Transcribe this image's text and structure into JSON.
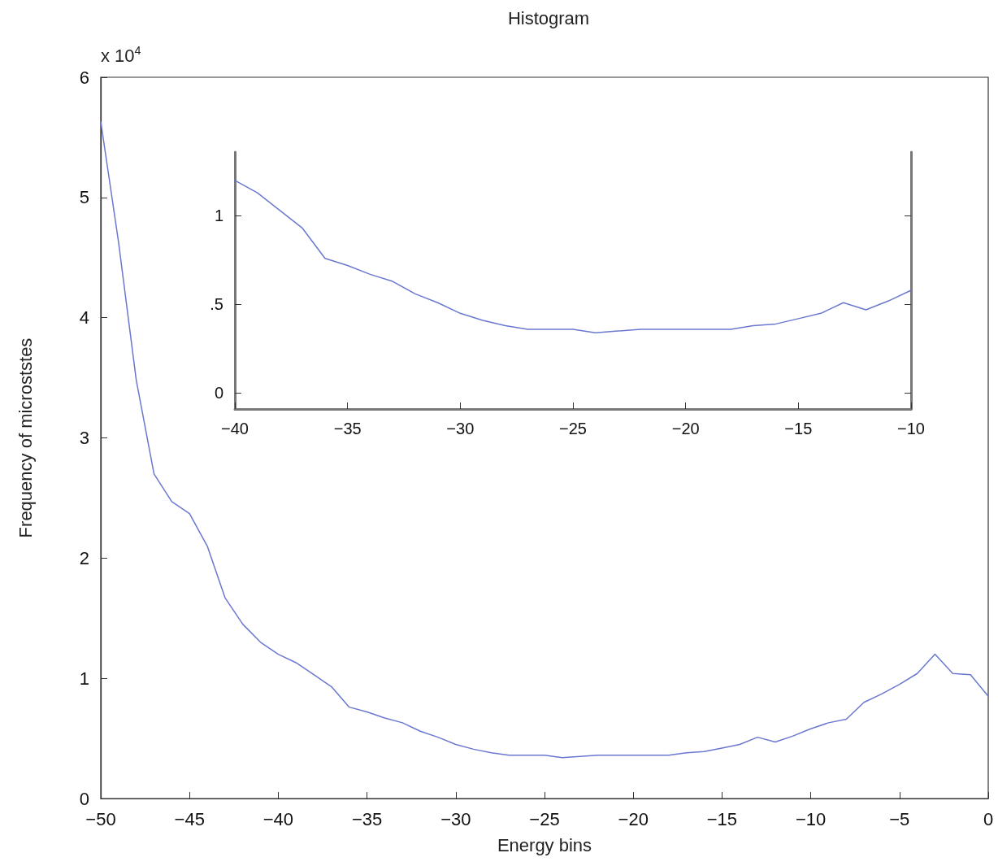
{
  "chart_data": [
    {
      "type": "line",
      "title": "Histogram",
      "xlabel": "Energy bins",
      "ylabel": "Frequency of microststes",
      "annotations": [
        "x 10$^{4}$"
      ],
      "color": "#6a78d0",
      "marker": "none",
      "x": [
        -50,
        -49,
        -48,
        -47,
        -46,
        -45,
        -44,
        -43,
        -42,
        -41,
        -40,
        -39,
        -38,
        -37,
        -36,
        -35,
        -34,
        -33,
        -32,
        -31,
        -30,
        -29,
        -28,
        -27,
        -26,
        -25,
        -24,
        -23,
        -22,
        -21,
        -20,
        -19,
        -18,
        -17,
        -16,
        -15,
        -14,
        -13,
        -12,
        -11,
        -10,
        -9,
        -8,
        -7,
        -6,
        -5,
        -4,
        -3,
        -2,
        -1,
        0
      ],
      "values": [
        5.63,
        4.63,
        3.48,
        2.7,
        2.47,
        2.37,
        2.1,
        1.67,
        1.45,
        1.3,
        1.2,
        1.13,
        1.03,
        0.93,
        0.76,
        0.72,
        0.67,
        0.63,
        0.56,
        0.51,
        0.45,
        0.41,
        0.38,
        0.36,
        0.36,
        0.36,
        0.34,
        0.35,
        0.36,
        0.36,
        0.36,
        0.36,
        0.36,
        0.38,
        0.39,
        0.42,
        0.45,
        0.51,
        0.47,
        0.52,
        0.58,
        0.63,
        0.66,
        0.8,
        0.87,
        0.95,
        1.04,
        1.2,
        1.04,
        1.03,
        0.85
      ],
      "xlim": [
        -50,
        0
      ],
      "xticks": [
        -50,
        -45,
        -40,
        -35,
        -30,
        -25,
        -20,
        -15,
        -10,
        -5,
        0
      ],
      "ylim": [
        0,
        6
      ],
      "yticks": [
        0,
        1,
        2,
        3,
        4,
        5,
        6
      ]
    },
    {
      "type": "line",
      "color": "#6a78d0",
      "marker": "none",
      "x": [
        -40,
        -39,
        -38,
        -37,
        -36,
        -35,
        -34,
        -33,
        -32,
        -31,
        -30,
        -29,
        -28,
        -27,
        -26,
        -25,
        -24,
        -23,
        -22,
        -21,
        -20,
        -19,
        -18,
        -17,
        -16,
        -15,
        -14,
        -13,
        -12,
        -11,
        -10
      ],
      "values": [
        1.2,
        1.13,
        1.03,
        0.93,
        0.76,
        0.72,
        0.67,
        0.63,
        0.56,
        0.51,
        0.45,
        0.41,
        0.38,
        0.36,
        0.36,
        0.36,
        0.34,
        0.35,
        0.36,
        0.36,
        0.36,
        0.36,
        0.36,
        0.38,
        0.39,
        0.42,
        0.45,
        0.51,
        0.47,
        0.52,
        0.58
      ],
      "xlim": [
        -40,
        -10
      ],
      "xticks": [
        -40,
        -35,
        -30,
        -25,
        -20,
        -15,
        -10
      ],
      "ylim": [
        -0.09,
        1.36
      ],
      "yticks": [
        0,
        {
          "value": 0.5,
          "label": ".5"
        },
        1
      ]
    }
  ]
}
